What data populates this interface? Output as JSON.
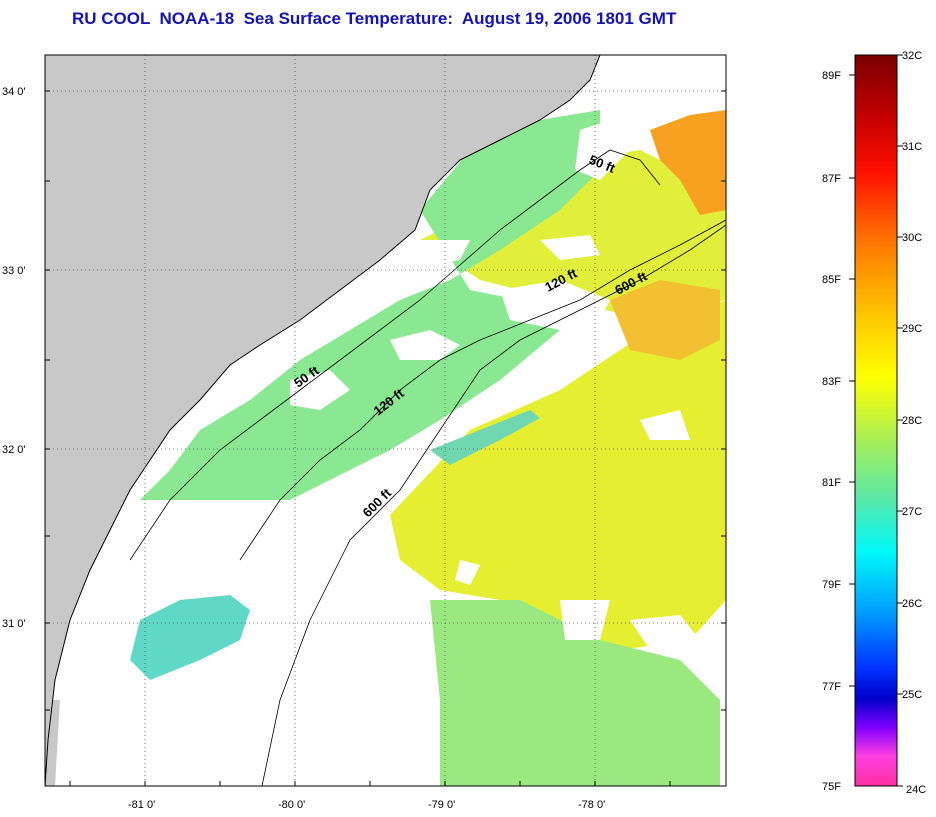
{
  "title": "RU COOL  NOAA-18  Sea Surface Temperature:  August 19, 2006 1801 GMT",
  "lat_labels": [
    "34 0'",
    "33 0'",
    "32 0'",
    "31 0'"
  ],
  "lon_labels": [
    "-81 0'",
    "-80 0'",
    "-79 0'",
    "-78 0'"
  ],
  "contour_labels": [
    "50 ft",
    "120 ft",
    "600 ft",
    "50 ft",
    "120 ft",
    "600 ft"
  ],
  "colorbar": {
    "fahrenheit_labels": [
      "89F",
      "87F",
      "85F",
      "83F",
      "81F",
      "79F",
      "77F",
      "75F"
    ],
    "celsius_labels": [
      "32C",
      "31C",
      "30C",
      "29C",
      "28C",
      "27C",
      "26C",
      "25C",
      "24C"
    ],
    "colors_top_to_bottom": [
      "#7a0000",
      "#d00000",
      "#ff2a00",
      "#ff7a00",
      "#ffc000",
      "#ffff00",
      "#c8f050",
      "#70e890",
      "#00f0f0",
      "#00a0ff",
      "#0030ff",
      "#0000c8",
      "#8000ff",
      "#ff40d0",
      "#ff30a0"
    ]
  },
  "colors": {
    "land": "#c8c8c8",
    "cloud": "#ffffff",
    "sst_warm": "#e8f030",
    "sst_cool": "#7ee8a0",
    "title": "#1414b4"
  }
}
